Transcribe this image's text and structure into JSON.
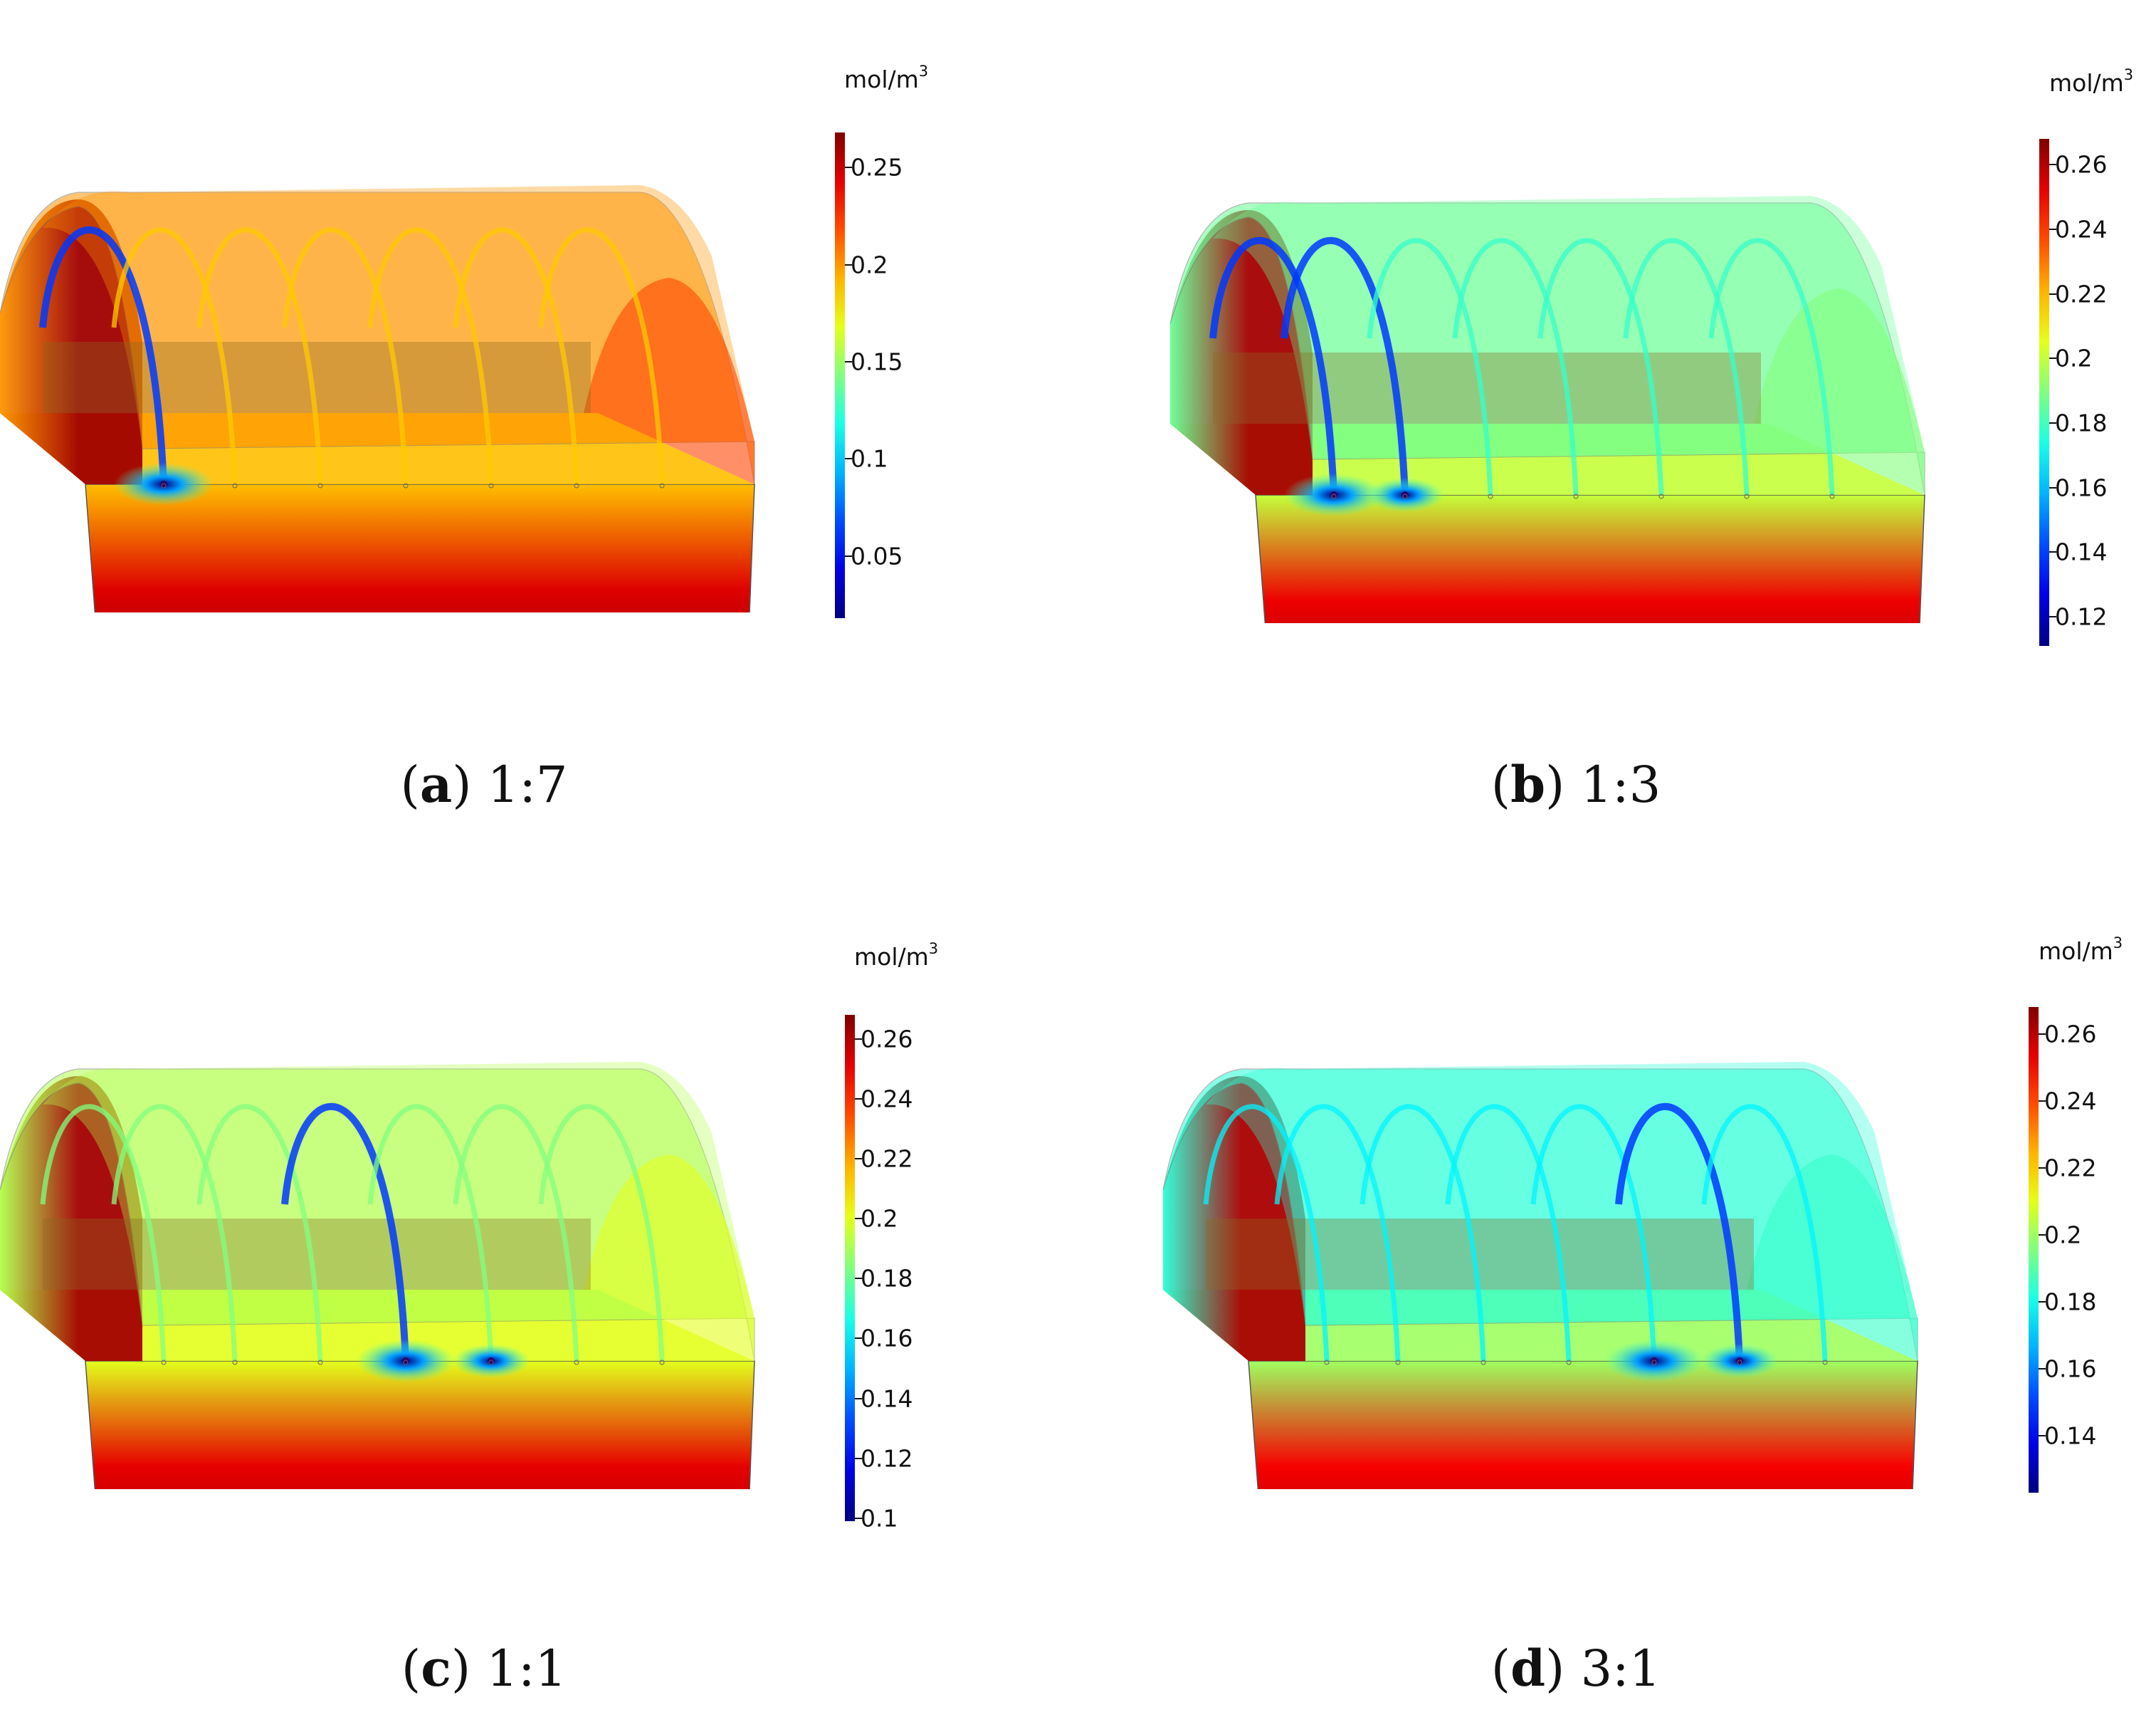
{
  "panels": [
    {
      "id": "a",
      "letter": "a",
      "ratio": "1:7",
      "unit": "mol/m",
      "unit_exp": "3",
      "colorbar": {
        "min": 0.018,
        "max": 0.268,
        "ticks": [
          0.25,
          0.2,
          0.15,
          0.1,
          0.05
        ],
        "tick_labels": [
          "0.25",
          "0.2",
          "0.15",
          "0.1",
          "0.05"
        ]
      },
      "field": {
        "roof": 0.2,
        "floor_back": 0.19,
        "floor_front": 0.26,
        "end": 0.22,
        "cold_arches": [
          0
        ],
        "dot_arches": [
          0
        ]
      }
    },
    {
      "id": "b",
      "letter": "b",
      "ratio": "1:3",
      "unit": "mol/m",
      "unit_exp": "3",
      "colorbar": {
        "min": 0.111,
        "max": 0.268,
        "ticks": [
          0.26,
          0.24,
          0.22,
          0.2,
          0.18,
          0.16,
          0.14,
          0.12
        ],
        "tick_labels": [
          "0.26",
          "0.24",
          "0.22",
          "0.2",
          "0.18",
          "0.16",
          "0.14",
          "0.12"
        ]
      },
      "field": {
        "roof": 0.186,
        "floor_back": 0.2,
        "floor_front": 0.262,
        "end": 0.19,
        "cold_arches": [
          0,
          1
        ],
        "dot_arches": [
          0,
          1
        ]
      }
    },
    {
      "id": "c",
      "letter": "c",
      "ratio": "1:1",
      "unit": "mol/m",
      "unit_exp": "3",
      "colorbar": {
        "min": 0.099,
        "max": 0.268,
        "ticks": [
          0.26,
          0.24,
          0.22,
          0.2,
          0.18,
          0.16,
          0.14,
          0.12,
          0.1
        ],
        "tick_labels": [
          "0.26",
          "0.24",
          "0.22",
          "0.2",
          "0.18",
          "0.16",
          "0.14",
          "0.12",
          "0.1"
        ]
      },
      "field": {
        "roof": 0.192,
        "floor_back": 0.2,
        "floor_front": 0.262,
        "end": 0.2,
        "cold_arches": [
          3
        ],
        "dot_arches": [
          3,
          4
        ]
      }
    },
    {
      "id": "d",
      "letter": "d",
      "ratio": "3:1",
      "unit": "mol/m",
      "unit_exp": "3",
      "colorbar": {
        "min": 0.123,
        "max": 0.268,
        "ticks": [
          0.26,
          0.24,
          0.22,
          0.2,
          0.18,
          0.16,
          0.14
        ],
        "tick_labels": [
          "0.26",
          "0.24",
          "0.22",
          "0.2",
          "0.18",
          "0.16",
          "0.14"
        ]
      },
      "field": {
        "roof": 0.183,
        "floor_back": 0.2,
        "floor_front": 0.262,
        "end": 0.185,
        "cold_arches": [
          5
        ],
        "dot_arches": [
          4,
          5
        ]
      }
    }
  ]
}
